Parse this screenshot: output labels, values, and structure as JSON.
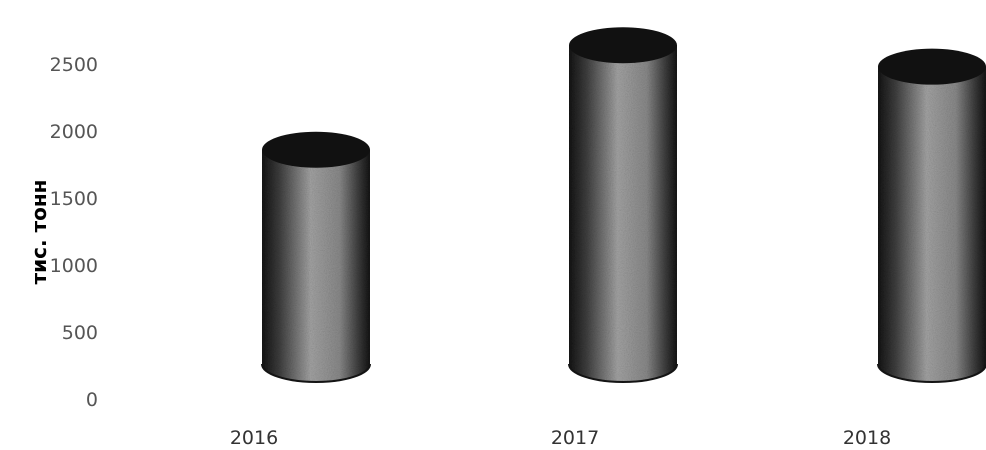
{
  "chart_data": {
    "type": "bar",
    "style": "3d-cylinder",
    "categories": [
      "2016",
      "2017",
      "2018"
    ],
    "values": [
      1860,
      2640,
      2480
    ],
    "ylabel": "тис. тонн",
    "xlabel": "",
    "ylim": [
      0,
      2500
    ],
    "yticks": [
      "0",
      "500",
      "1000",
      "1500",
      "2000",
      "2500"
    ],
    "grid": false,
    "legend": "none",
    "colors": {
      "bar_body": "#8c8c8c",
      "bar_edge": "#141414",
      "bar_top": "#111111",
      "tick_text": "#555555"
    }
  }
}
